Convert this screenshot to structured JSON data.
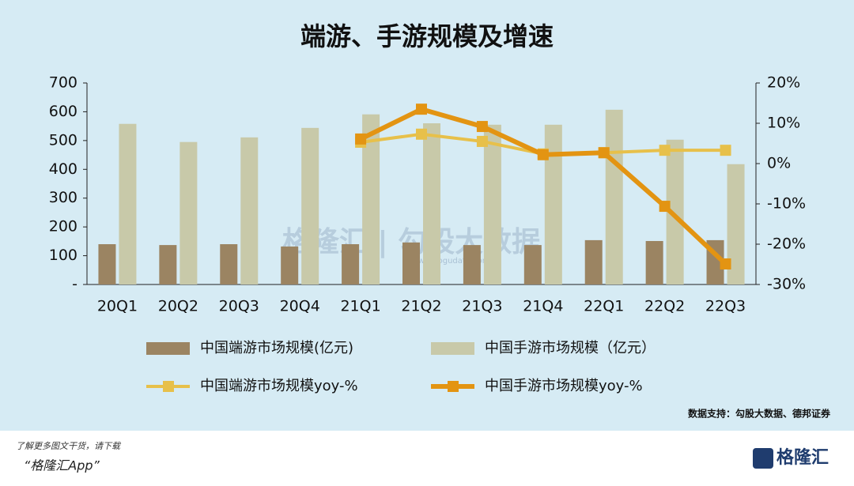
{
  "chart_data": {
    "type": "bar",
    "title": "端游、手游规模及增速",
    "categories": [
      "20Q1",
      "20Q2",
      "20Q3",
      "20Q4",
      "21Q1",
      "21Q2",
      "21Q3",
      "21Q4",
      "22Q1",
      "22Q2",
      "22Q3"
    ],
    "series": [
      {
        "name": "中国端游市场规模(亿元)",
        "type": "bar",
        "color": "#9b8462",
        "values": [
          140,
          137,
          140,
          132,
          140,
          146,
          137,
          137,
          154,
          151,
          154
        ]
      },
      {
        "name": "中国手游市场规模（亿元）",
        "type": "bar",
        "color": "#c8c9a9",
        "values": [
          558,
          495,
          511,
          544,
          591,
          560,
          555,
          555,
          607,
          503,
          418
        ]
      },
      {
        "name": "中国端游市场规模yoy-%",
        "type": "line",
        "axis": "y2",
        "color": "#e7c04a",
        "values": [
          null,
          null,
          null,
          null,
          5.3,
          7.3,
          5.5,
          2.4,
          2.7,
          3.3,
          3.3
        ]
      },
      {
        "name": "中国手游市场规模yoy-%",
        "type": "line",
        "axis": "y2",
        "color": "#e39412",
        "values": [
          null,
          null,
          null,
          null,
          6.1,
          13.5,
          9.2,
          2.2,
          2.7,
          -10.6,
          -24.9
        ]
      }
    ],
    "ylim": [
      0,
      700
    ],
    "yticks": [
      {
        "value": 0,
        "label": "-"
      },
      100,
      200,
      300,
      400,
      500,
      600,
      700
    ],
    "y2lim": [
      -30,
      20
    ],
    "y2ticks": [
      {
        "value": -30,
        "label": "-30%"
      },
      {
        "value": -20,
        "label": "-20%"
      },
      {
        "value": -10,
        "label": "-10%"
      },
      {
        "value": 0,
        "label": "0%"
      },
      {
        "value": 10,
        "label": "10%"
      },
      {
        "value": 20,
        "label": "20%"
      }
    ],
    "watermark": "格隆汇 | 勾股大数据",
    "watermark_url": "www.gogudata.com",
    "source": "数据支持：勾股大数据、德邦证券",
    "footer_line1": "了解更多图文干货，请下载",
    "footer_line2": "“格隆汇App”",
    "logo": "格隆汇"
  }
}
